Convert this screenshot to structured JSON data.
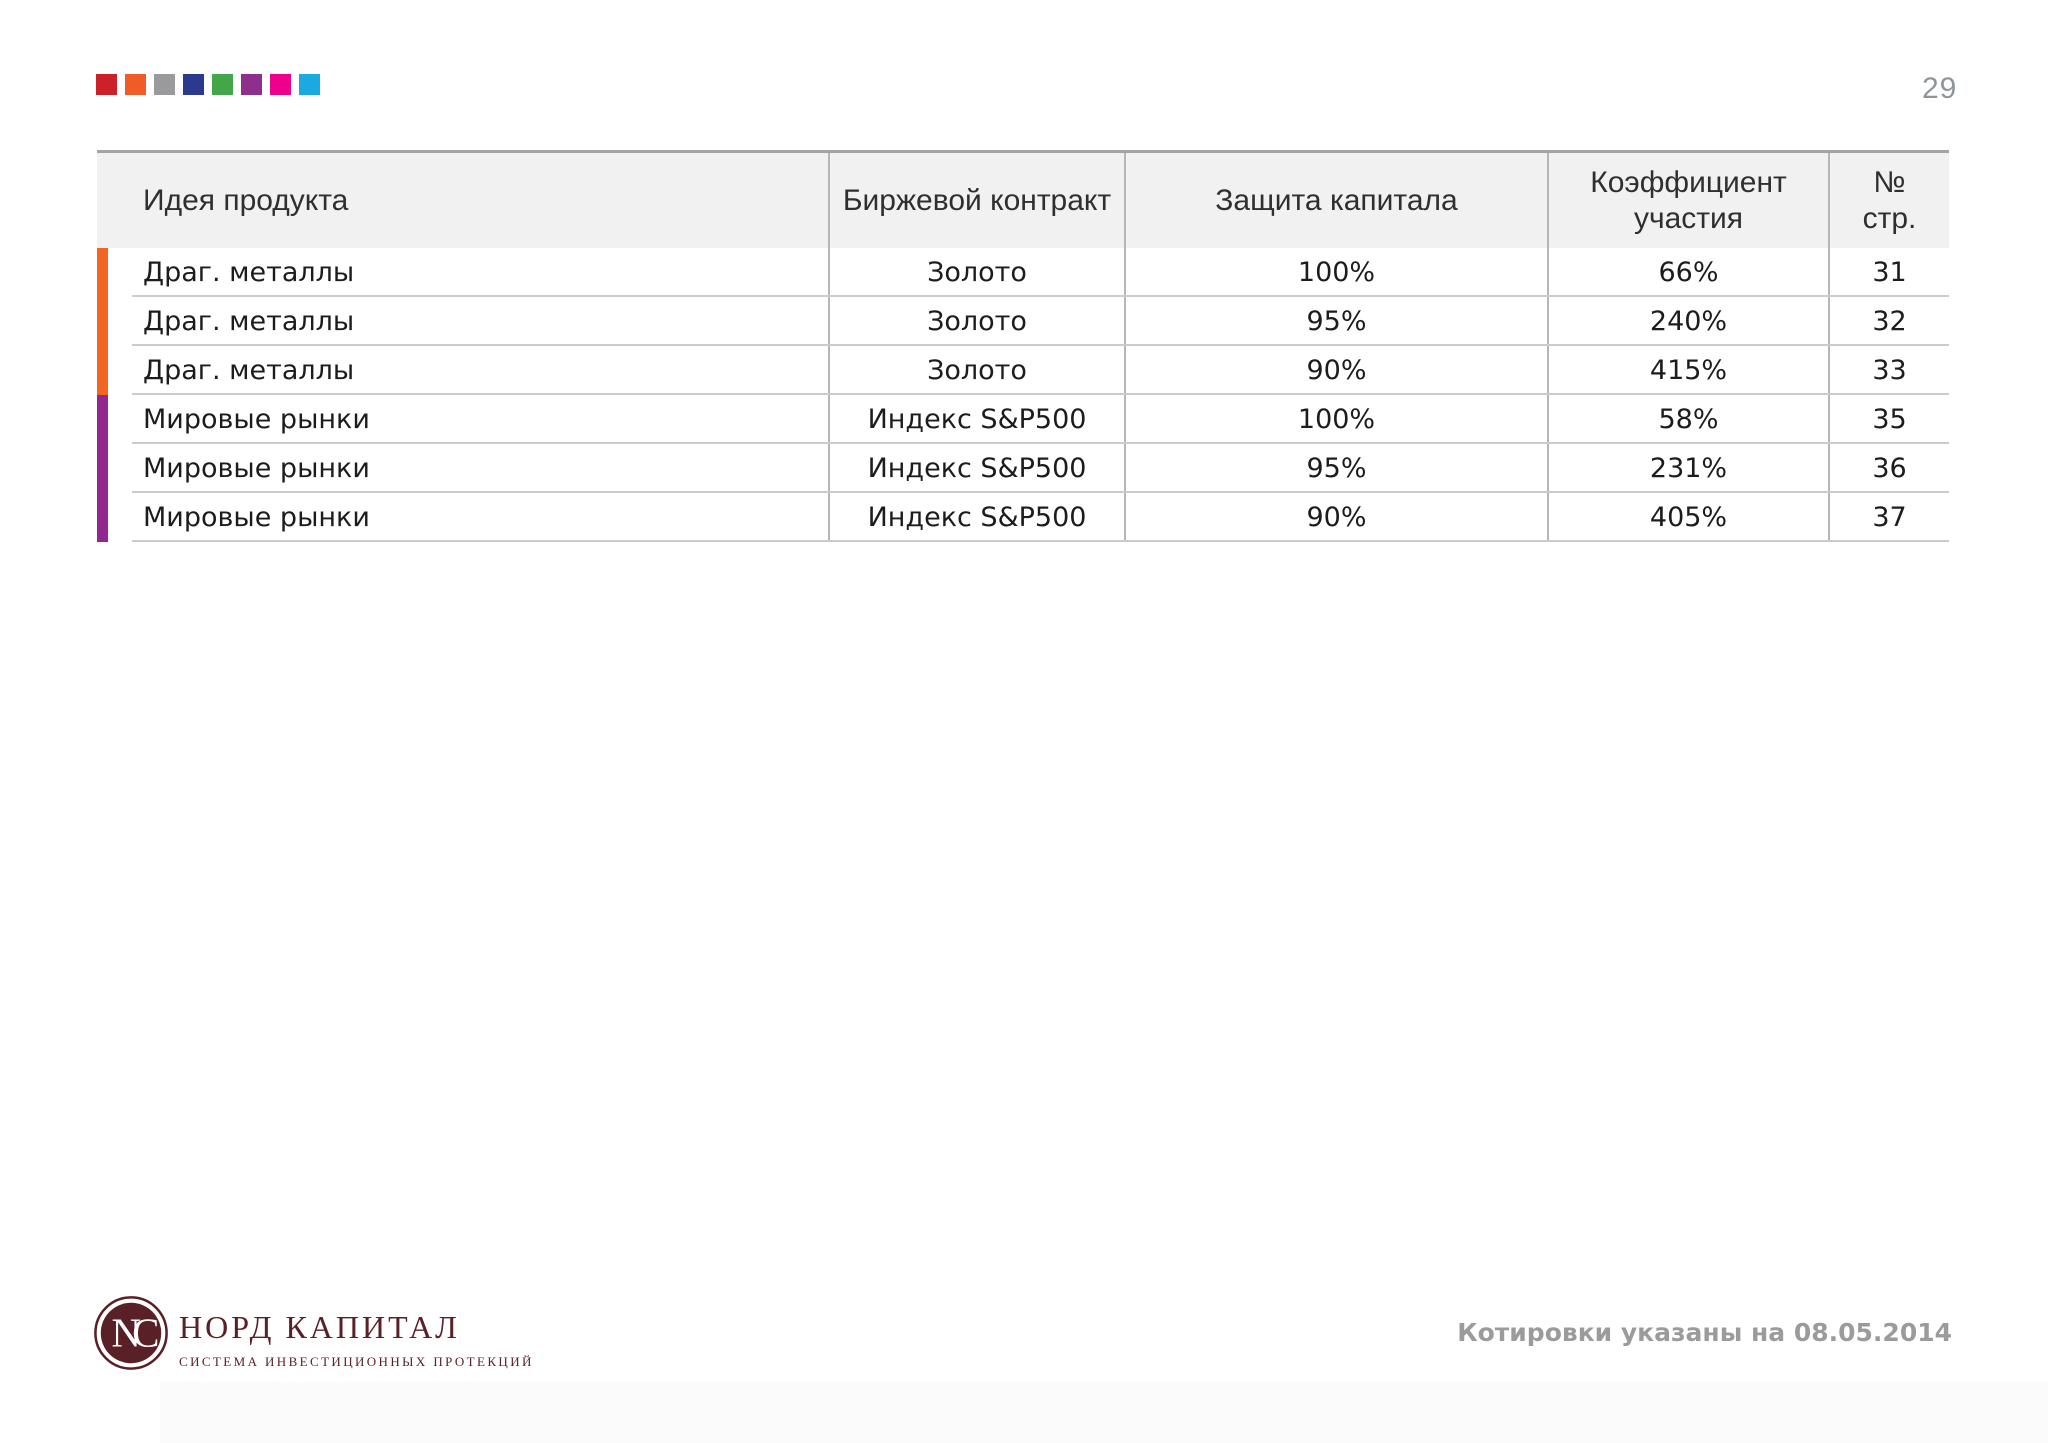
{
  "page": {
    "number": "29",
    "footer_note": "Котировки указаны на 08.05.2014"
  },
  "brand": {
    "name": "НОРД КАПИТАЛ",
    "tagline": "СИСТЕМА ИНВЕСТИЦИОННЫХ ПРОТЕКЦИЙ",
    "monogram": "NC",
    "color": "#5a2027"
  },
  "decor": {
    "squares": [
      "#cc2128",
      "#f15b27",
      "#9a9a9c",
      "#2b3a8f",
      "#43a649",
      "#8e2f8e",
      "#ec008c",
      "#19aae1"
    ]
  },
  "table": {
    "columns": [
      "Идея продукта",
      "Биржевой контракт",
      "Защита капитала",
      "Коэффициент\nучастия",
      "№\nстр."
    ],
    "groups": {
      "metals": "#f26522",
      "markets": "#92278f"
    },
    "rows": [
      {
        "group": "metals",
        "cells": [
          "Драг. металлы",
          "Золото",
          "100%",
          "66%",
          "31"
        ]
      },
      {
        "group": "metals",
        "cells": [
          "Драг. металлы",
          "Золото",
          "95%",
          "240%",
          "32"
        ]
      },
      {
        "group": "metals",
        "cells": [
          "Драг. металлы",
          "Золото",
          "90%",
          "415%",
          "33"
        ]
      },
      {
        "group": "markets",
        "cells": [
          "Мировые рынки",
          "Индекс S&P500",
          "100%",
          "58%",
          "35"
        ]
      },
      {
        "group": "markets",
        "cells": [
          "Мировые рынки",
          "Индекс S&P500",
          "95%",
          "231%",
          "36"
        ]
      },
      {
        "group": "markets",
        "cells": [
          "Мировые рынки",
          "Индекс S&P500",
          "90%",
          "405%",
          "37"
        ]
      }
    ]
  },
  "colors": {
    "header_bg": "#f1f1f2",
    "table_top_border": "#a3a3a3",
    "column_border": "#b6b6b6",
    "row_border": "#cbcbcb",
    "footer_text": "#9b9b9b",
    "page_number": "#90959a"
  }
}
